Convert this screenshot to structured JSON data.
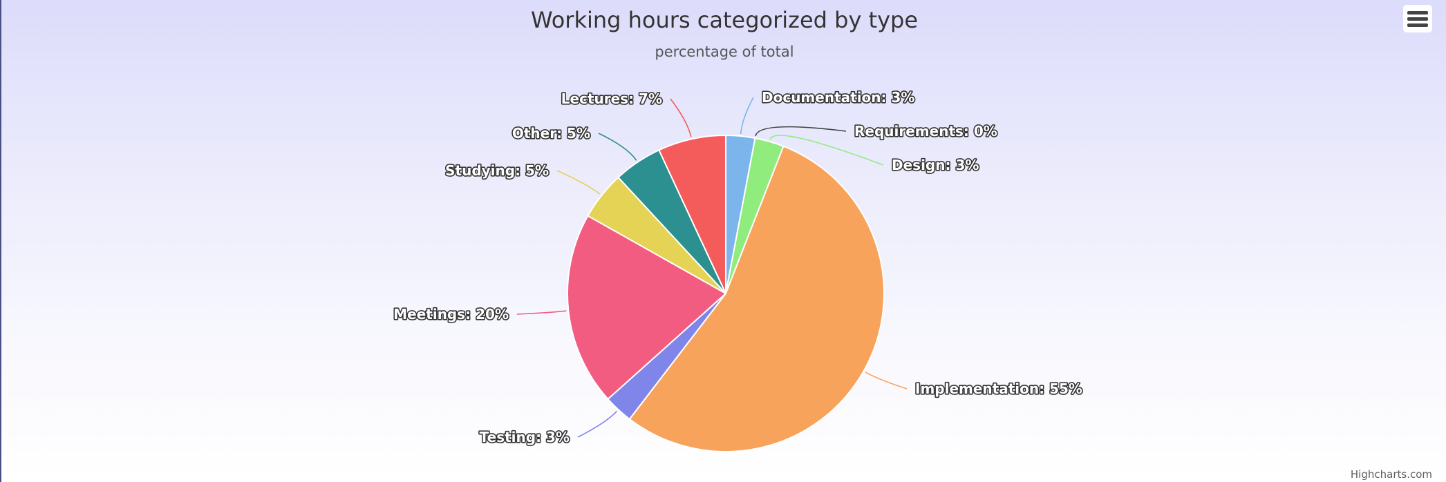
{
  "chart_data": {
    "type": "pie",
    "title": "Working hours categorized by type",
    "subtitle": "percentage of total",
    "unit": "%",
    "slices": [
      {
        "name": "Documentation",
        "value": 3,
        "label": "Documentation: 3%",
        "color": "#7cb5ec"
      },
      {
        "name": "Requirements",
        "value": 0,
        "label": "Requirements: 0%",
        "color": "#434348"
      },
      {
        "name": "Design",
        "value": 3,
        "label": "Design: 3%",
        "color": "#90ed7d"
      },
      {
        "name": "Implementation",
        "value": 55,
        "label": "Implementation: 55%",
        "color": "#f7a35c"
      },
      {
        "name": "Testing",
        "value": 3,
        "label": "Testing: 3%",
        "color": "#8085e9"
      },
      {
        "name": "Meetings",
        "value": 20,
        "label": "Meetings: 20%",
        "color": "#f15c80"
      },
      {
        "name": "Studying",
        "value": 5,
        "label": "Studying: 5%",
        "color": "#e4d354"
      },
      {
        "name": "Other",
        "value": 5,
        "label": "Other: 5%",
        "color": "#2b908f"
      },
      {
        "name": "Lectures",
        "value": 7,
        "label": "Lectures: 7%",
        "color": "#f45b5b"
      }
    ]
  },
  "credits": "Highcharts.com",
  "menu": {
    "icon": "hamburger-menu-icon"
  }
}
